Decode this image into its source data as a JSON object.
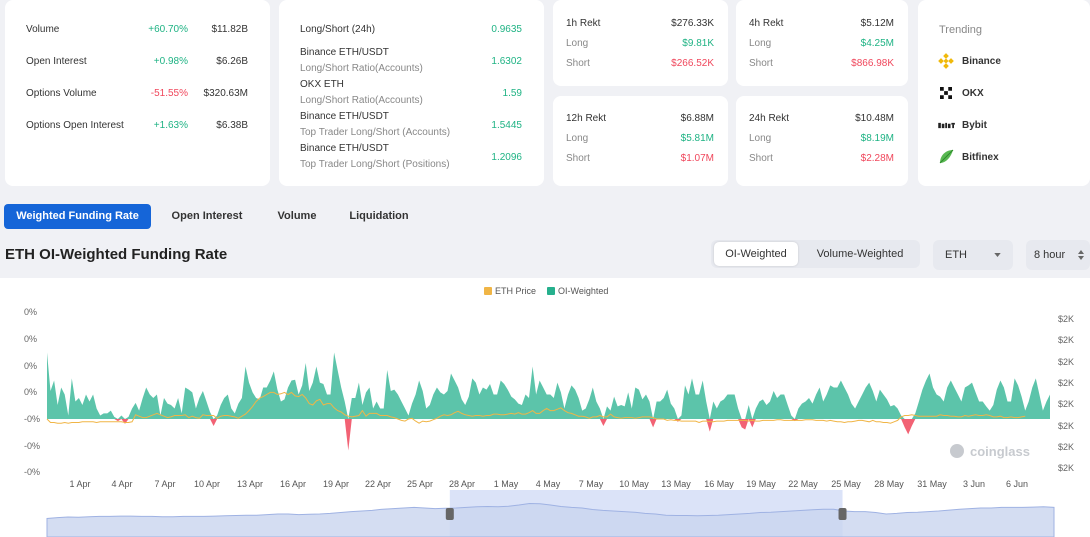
{
  "stats_card": {
    "rows": [
      {
        "label": "Volume",
        "change": "+60.70%",
        "value": "$11.82B",
        "dir": "up"
      },
      {
        "label": "Open Interest",
        "change": "+0.98%",
        "value": "$6.26B",
        "dir": "up"
      },
      {
        "label": "Options Volume",
        "change": "-51.55%",
        "value": "$320.63M",
        "dir": "down"
      },
      {
        "label": "Options Open Interest",
        "change": "+1.63%",
        "value": "$6.38B",
        "dir": "up"
      }
    ]
  },
  "ratio_card": {
    "header_label": "Long/Short (24h)",
    "header_value": "0.9635",
    "rows": [
      {
        "title": "Binance ETH/USDT",
        "subtitle": "Long/Short Ratio(Accounts)",
        "value": "1.6302"
      },
      {
        "title": "OKX ETH",
        "subtitle": "Long/Short Ratio(Accounts)",
        "value": "1.59"
      },
      {
        "title": "Binance ETH/USDT",
        "subtitle": "Top Trader Long/Short (Accounts)",
        "value": "1.5445"
      },
      {
        "title": "Binance ETH/USDT",
        "subtitle": "Top Trader Long/Short (Positions)",
        "value": "1.2096"
      }
    ]
  },
  "rekt_cards": [
    {
      "title": "1h Rekt",
      "total": "$276.33K",
      "long_label": "Long",
      "long": "$9.81K",
      "short_label": "Short",
      "short": "$266.52K"
    },
    {
      "title": "4h Rekt",
      "total": "$5.12M",
      "long_label": "Long",
      "long": "$4.25M",
      "short_label": "Short",
      "short": "$866.98K"
    },
    {
      "title": "12h Rekt",
      "total": "$6.88M",
      "long_label": "Long",
      "long": "$5.81M",
      "short_label": "Short",
      "short": "$1.07M"
    },
    {
      "title": "24h Rekt",
      "total": "$10.48M",
      "long_label": "Long",
      "long": "$8.19M",
      "short_label": "Short",
      "short": "$2.28M"
    }
  ],
  "trending": {
    "title": "Trending",
    "items": [
      {
        "name": "Binance",
        "icon": "binance-icon"
      },
      {
        "name": "OKX",
        "icon": "okx-icon"
      },
      {
        "name": "Bybit",
        "icon": "bybit-icon"
      },
      {
        "name": "Bitfinex",
        "icon": "bitfinex-icon"
      }
    ]
  },
  "tabs": [
    "Weighted Funding Rate",
    "Open Interest",
    "Volume",
    "Liquidation"
  ],
  "page_title": "ETH OI-Weighted Funding Rate",
  "toggle": {
    "options": [
      "OI-Weighted",
      "Volume-Weighted"
    ],
    "selected": "OI-Weighted"
  },
  "coin_select": {
    "value": "ETH"
  },
  "interval_select": {
    "value": "8 hour"
  },
  "watermark": "coinglass",
  "colors": {
    "accent": "#1565d8",
    "positive": "#1fb384",
    "negative": "#f0475c",
    "area": "#26b08d",
    "price": "#f0b546"
  },
  "chart_data": {
    "type": "area",
    "legend": [
      "ETH Price",
      "OI-Weighted"
    ],
    "legend_position": "top-center",
    "x_tick_labels": [
      "1 Apr",
      "4 Apr",
      "7 Apr",
      "10 Apr",
      "13 Apr",
      "16 Apr",
      "19 Apr",
      "22 Apr",
      "25 Apr",
      "28 Apr",
      "1 May",
      "4 May",
      "7 May",
      "10 May",
      "13 May",
      "16 May",
      "19 May",
      "22 May",
      "25 May",
      "28 May",
      "31 May",
      "3 Jun",
      "6 Jun"
    ],
    "y_left_tick_labels": [
      "0%",
      "0%",
      "0%",
      "0%",
      "-0%",
      "-0%",
      "-0%"
    ],
    "y_right_tick_labels": [
      "$2K",
      "$2K",
      "$2K",
      "$2K",
      "$2K",
      "$2K",
      "$2K",
      "$2K"
    ],
    "grid": false,
    "series": [
      {
        "name": "OI-Weighted",
        "values": [
          0.0095,
          0.004,
          0.0055,
          0.002,
          0.0045,
          0.0035,
          0.0005,
          0.0058,
          0.0025,
          0.003,
          0.002,
          0.0035,
          0.0025,
          0.0035,
          0.0015,
          0.0005,
          0.0008,
          0.0008,
          0.0012,
          0.0003,
          -0.0003,
          0.0005,
          -0.0007,
          0.0003,
          0.0015,
          0.0023,
          0.0012,
          0.003,
          0.0045,
          0.0035,
          0.003,
          0.0035,
          0.0005,
          0.003,
          0.0022,
          0.002,
          0.0015,
          0.003,
          0.0008,
          0.0045,
          0.0042,
          0.0038,
          0.0015,
          0.003,
          0.004,
          0.0025,
          0.001,
          -0.001,
          0.0005,
          0.002,
          0.003,
          0.0035,
          0.0015,
          0.0008,
          0.0022,
          0.003,
          0.0075,
          0.0052,
          0.0038,
          0.003,
          0.0028,
          0.0045,
          0.0045,
          0.0055,
          0.0068,
          0.0042,
          0.0025,
          0.0028,
          0.0045,
          0.0055,
          0.0056,
          0.0035,
          0.0048,
          0.008,
          0.004,
          0.0052,
          0.0075,
          0.0052,
          0.005,
          0.0035,
          0.0035,
          0.0095,
          0.007,
          0.0045,
          0.0025,
          -0.0045,
          0.003,
          0.003,
          0.0052,
          0.002,
          0.0038,
          0.0045,
          0.0015,
          0.0025,
          0.0015,
          0.0015,
          0.007,
          0.004,
          0.0042,
          0.0035,
          0.0025,
          0.0015,
          0.0005,
          0.0022,
          0.0035,
          0.0055,
          0.004,
          0.0015,
          0.002,
          0.0035,
          0.0045,
          0.0038,
          0.0035,
          0.004,
          0.0065,
          0.0055,
          0.0045,
          0.0028,
          0.002,
          0.0032,
          0.0058,
          0.0052,
          0.0035,
          0.0045,
          0.0042,
          0.005,
          0.0035,
          0.0035,
          0.0055,
          0.005,
          0.0042,
          0.0032,
          0.0028,
          0.0022,
          0.002,
          0.0035,
          0.003,
          0.0075,
          0.0035,
          0.0055,
          0.0045,
          0.0035,
          0.0035,
          0.003,
          0.0052,
          0.0038,
          0.0015,
          0.0035,
          0.0048,
          0.0042,
          0.003,
          0.0012,
          0.0015,
          0.0028,
          0.0045,
          0.0025,
          0.0015,
          -0.001,
          0.0018,
          0.0012,
          0.0032,
          0.0018,
          0.002,
          0.0018,
          0.0038,
          0.0015,
          0.0045,
          0.0042,
          0.0028,
          0.0035,
          0.0025,
          -0.0012,
          0.0025,
          0.0025,
          0.003,
          0.0042,
          0.0022,
          0.0015,
          -0.0004,
          0.0005,
          0.0048,
          0.0035,
          0.0058,
          0.0035,
          0.0035,
          0.0055,
          0.0025,
          -0.0018,
          0.0025,
          0.0015,
          0.0025,
          0.0028,
          0.0035,
          0.0035,
          0.0035,
          0.0015,
          -0.0012,
          -0.0015,
          0.002,
          -0.0012,
          0.0015,
          0.0025,
          0.0028,
          0.002,
          0.0025,
          0.004,
          0.003,
          0.0035,
          0.0035,
          0.002,
          0.0005,
          -0.0003,
          0.0015,
          0.0022,
          0.0025,
          0.003,
          0.0022,
          0.0035,
          0.0045,
          0.0025,
          0.0035,
          0.0048,
          0.0045,
          0.0045,
          0.0055,
          0.0045,
          0.0035,
          0.0022,
          0.0015,
          0.0025,
          0.0035,
          0.0045,
          0.0052,
          0.004,
          0.0025,
          0.0042,
          0.0035,
          0.0028,
          0.0018,
          0.002,
          0.0015,
          0.0005,
          -0.0012,
          -0.0022,
          -0.001,
          0.0008,
          0.0025,
          0.0042,
          0.0055,
          0.0065,
          0.0045,
          0.0035,
          0.0032,
          0.0025,
          0.0045,
          0.0055,
          0.0045,
          0.0035,
          0.0025,
          0.0045,
          0.0048,
          0.0052,
          0.0038,
          0.0025,
          0.0025,
          0.0018,
          0.0012,
          0.002,
          0.0042,
          0.0055,
          0.0045,
          0.0025,
          0.0025,
          0.0058,
          0.0048,
          0.0032,
          0.0012,
          0.0025,
          0.0045,
          0.0058,
          0.0035,
          0.0012,
          0.0025,
          0.0035
        ]
      },
      {
        "name": "ETH Price",
        "values": [
          0.0,
          -0.0005,
          -0.0005,
          -0.0006,
          -0.0006,
          -0.0005,
          -0.0006,
          -0.0005,
          -0.0005,
          -0.0005,
          -0.0004,
          -0.0004,
          -0.0004,
          -0.0004,
          -0.0005,
          -0.0004,
          -0.0004,
          -0.0004,
          -0.0004,
          -0.0004,
          -0.0004,
          -0.0004,
          -0.0005,
          -0.0005,
          -0.0004,
          0.0006,
          0.0004,
          0.0002,
          0.0002,
          0.0004,
          0.0006,
          0.0008,
          0.0006,
          0.0004,
          0.0002,
          0.0003,
          0.0005,
          0.0005,
          0.0005,
          0.0006,
          0.0002,
          0.0004,
          0.0002,
          0.0001,
          0.0006,
          0.0005,
          0.0005,
          0.0005,
          0.0001,
          0.0004,
          0.0005,
          0.0005,
          0.0004,
          0.0003,
          0.0001,
          0.0004,
          0.0007,
          0.0012,
          0.0018,
          0.0025,
          0.003,
          0.0032,
          0.0035,
          0.0038,
          0.0038,
          0.0035,
          0.0036,
          0.0038,
          0.0035,
          0.0038,
          0.0033,
          0.0032,
          0.0035,
          0.003,
          0.0022,
          0.002,
          0.0026,
          0.0028,
          0.002,
          0.0022,
          0.0022,
          0.0016,
          0.0012,
          0.001,
          0.0006,
          0.0004,
          0.0003,
          0.0004,
          0.0005,
          0.0012,
          0.0004,
          0.0008,
          0.0008,
          0.0008,
          0.0005,
          0.0005,
          0.0005,
          0.0003,
          0.0002,
          0.0,
          -0.0002,
          -0.0003,
          0.0,
          0.0001,
          -0.0003,
          -0.0006,
          -0.0003,
          -0.0004,
          -0.0003,
          -0.0001,
          0.0001,
          0.0004,
          0.0006,
          0.0005,
          0.0006,
          0.0009,
          0.0011,
          0.0008,
          0.0006,
          0.0005,
          0.0004,
          0.0005,
          0.0005,
          0.0004,
          0.0005,
          0.0005,
          0.0007,
          0.0007,
          0.0006,
          0.0006,
          0.0007,
          0.0008,
          0.0007,
          0.0009,
          0.0007,
          0.0007,
          0.0009,
          0.0012,
          0.0008,
          0.0008,
          0.0012,
          0.0015,
          0.0012,
          0.0012,
          0.0014,
          0.0016,
          0.0012,
          0.0009,
          0.0008,
          0.0006,
          0.0004,
          0.0004,
          0.0003,
          0.0001,
          0.0003,
          0.0003,
          0.0005,
          0.0003,
          0.0003,
          0.0007,
          0.0003,
          0.0002,
          0.0001,
          0.0002,
          0.0002,
          0.0002,
          0.0001,
          0.0002,
          0.0003,
          0.0003,
          0.0003,
          0.0002,
          0.0,
          0.0,
          0.0,
          -0.0002,
          -0.0001,
          -0.0002,
          -0.0002,
          -0.0003,
          -0.0003,
          -0.0003,
          -0.0003,
          -0.0003,
          -0.0005,
          -0.0003,
          -0.0003,
          -0.0004,
          -0.0004,
          -0.0003,
          -0.0003,
          -0.0003,
          -0.0002,
          -0.0002,
          -0.0002,
          -0.0002,
          -0.0002,
          -0.0002,
          -0.0003,
          -0.0002,
          -0.0003,
          -0.0003,
          -0.0002,
          -0.0002,
          -0.0002,
          -0.0002,
          -0.0001,
          -0.0001,
          -0.0002,
          -0.0002,
          -0.0002,
          -0.0002,
          -0.0002,
          -0.0002,
          -0.0001,
          -0.0001,
          -0.0001,
          -0.0002,
          -0.0002,
          -0.0002,
          -0.0003,
          -0.0002,
          -0.0003,
          -0.0004,
          -0.0004,
          -0.0005,
          -0.0004,
          -0.0004,
          -0.0003,
          -0.0002,
          -0.0002,
          -0.0003,
          -0.0004,
          -0.0002,
          -0.0004,
          -0.0004,
          -0.0005,
          -0.0005,
          -0.0006,
          -0.0004,
          -0.0002,
          0.0003,
          0.0005,
          0.0005,
          0.0006,
          0.0005,
          0.0004,
          0.0004,
          0.0004,
          0.0004,
          0.0004,
          0.0004,
          0.0006,
          0.0005,
          0.0005,
          0.0004,
          0.0004,
          0.0003,
          0.0003,
          0.0005,
          0.0004,
          0.0005,
          0.0006,
          0.0005,
          0.0005,
          0.0006,
          0.0005,
          0.0003,
          0.0003,
          0.0004,
          0.0002,
          0.0002,
          0.0003,
          0.0002,
          0.0002,
          0.0003,
          0.0004
        ]
      }
    ],
    "navigator_values": [
      0.35,
      0.38,
      0.4,
      0.39,
      0.41,
      0.42,
      0.42,
      0.43,
      0.43,
      0.42,
      0.42,
      0.41,
      0.41,
      0.42,
      0.42,
      0.42,
      0.43,
      0.44,
      0.45,
      0.46,
      0.46,
      0.48,
      0.5,
      0.5,
      0.48,
      0.49,
      0.5,
      0.52,
      0.55,
      0.58,
      0.6,
      0.62,
      0.66,
      0.68,
      0.7,
      0.72,
      0.7,
      0.68,
      0.69,
      0.7,
      0.72,
      0.74,
      0.75,
      0.74,
      0.76,
      0.8,
      0.85,
      0.84,
      0.8,
      0.75,
      0.72,
      0.7,
      0.65,
      0.62,
      0.6,
      0.58,
      0.56,
      0.52,
      0.5,
      0.46,
      0.45,
      0.45,
      0.44,
      0.45,
      0.46,
      0.48,
      0.5,
      0.52,
      0.55,
      0.56,
      0.58,
      0.6,
      0.62,
      0.64,
      0.66,
      0.66,
      0.6,
      0.58,
      0.58,
      0.55,
      0.5,
      0.52,
      0.55,
      0.56,
      0.58,
      0.6,
      0.63,
      0.66,
      0.68,
      0.7,
      0.7,
      0.72,
      0.72,
      0.72,
      0.73,
      0.74,
      0.72
    ],
    "navigator_selection": [
      0.4,
      0.79
    ]
  }
}
